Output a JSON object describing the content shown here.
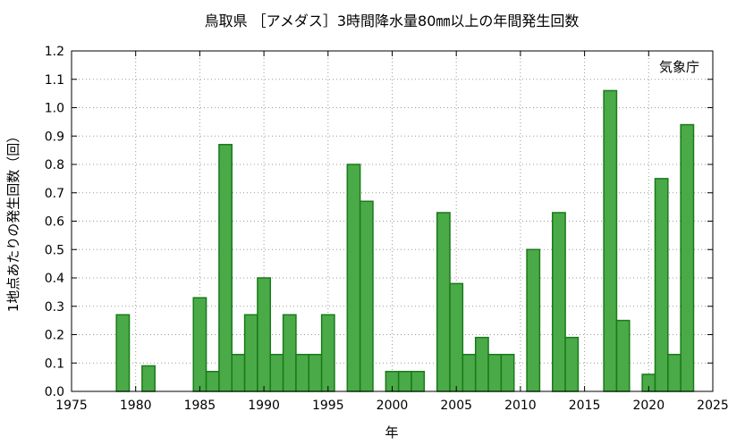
{
  "chart_data": {
    "type": "bar",
    "title": "鳥取県 ［アメダス］3時間降水量80㎜以上の年間発生回数",
    "xlabel": "年",
    "ylabel": "1地点あたりの発生回数（回）",
    "source": "気象庁",
    "xlim": [
      1975,
      2025
    ],
    "ylim": [
      0,
      1.2
    ],
    "x_ticks": [
      "1975",
      "1980",
      "1985",
      "1990",
      "1995",
      "2000",
      "2005",
      "2010",
      "2015",
      "2020",
      "2025"
    ],
    "y_ticks": [
      "0.0",
      "0.1",
      "0.2",
      "0.3",
      "0.4",
      "0.5",
      "0.6",
      "0.7",
      "0.8",
      "0.9",
      "1.0",
      "1.1",
      "1.2"
    ],
    "grid": true,
    "bar_color": "#4aaa48",
    "bar_edge_color": "#1a7a1a",
    "x": [
      1979,
      1981,
      1985,
      1986,
      1987,
      1988,
      1989,
      1990,
      1991,
      1992,
      1993,
      1994,
      1995,
      1997,
      1998,
      2000,
      2001,
      2002,
      2004,
      2005,
      2006,
      2007,
      2008,
      2009,
      2011,
      2013,
      2014,
      2017,
      2018,
      2020,
      2021,
      2022,
      2023
    ],
    "values": [
      0.27,
      0.09,
      0.33,
      0.07,
      0.87,
      0.13,
      0.27,
      0.4,
      0.13,
      0.27,
      0.13,
      0.13,
      0.27,
      0.8,
      0.67,
      0.07,
      0.07,
      0.07,
      0.63,
      0.38,
      0.13,
      0.19,
      0.13,
      0.13,
      0.5,
      0.63,
      0.19,
      1.06,
      0.25,
      0.06,
      0.75,
      0.13,
      0.94
    ]
  }
}
